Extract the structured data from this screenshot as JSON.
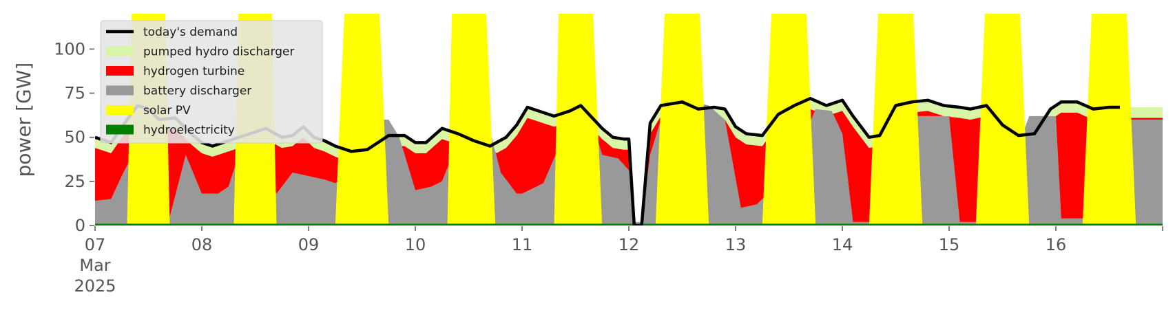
{
  "chart_data": {
    "type": "area",
    "ylabel": "power [GW]",
    "ylim": [
      0,
      120
    ],
    "yticks": [
      0,
      25,
      50,
      75,
      100
    ],
    "xlim": [
      0,
      10
    ],
    "x_tick_labels": [
      "07",
      "08",
      "09",
      "10",
      "11",
      "12",
      "13",
      "14",
      "15",
      "16"
    ],
    "x_tick_sublabels": [
      "Mar",
      "2025"
    ],
    "legend_position": "upper-left",
    "grid": false,
    "background": "#ffffff",
    "stack_order": [
      "hydroelectricity",
      "battery discharger",
      "hydrogen turbine",
      "pumped hydro discharger",
      "solar PV"
    ],
    "series": [
      {
        "name": "today's demand",
        "kind": "line",
        "color": "#000000",
        "points": [
          [
            0,
            50
          ],
          [
            0.15,
            47
          ],
          [
            0.3,
            60
          ],
          [
            0.4,
            68
          ],
          [
            0.5,
            66
          ],
          [
            0.6,
            60
          ],
          [
            0.75,
            61
          ],
          [
            0.9,
            52
          ],
          [
            1.0,
            47
          ],
          [
            1.1,
            45
          ],
          [
            1.25,
            48
          ],
          [
            1.4,
            51
          ],
          [
            1.6,
            55
          ],
          [
            1.75,
            50
          ],
          [
            1.85,
            51
          ],
          [
            1.95,
            56
          ],
          [
            2.05,
            50
          ],
          [
            2.15,
            48
          ],
          [
            2.25,
            45
          ],
          [
            2.4,
            42
          ],
          [
            2.55,
            43
          ],
          [
            2.65,
            47
          ],
          [
            2.75,
            51
          ],
          [
            2.9,
            51
          ],
          [
            3.0,
            47
          ],
          [
            3.1,
            47
          ],
          [
            3.25,
            55
          ],
          [
            3.4,
            52
          ],
          [
            3.55,
            48
          ],
          [
            3.7,
            45
          ],
          [
            3.85,
            50
          ],
          [
            3.95,
            57
          ],
          [
            4.05,
            67
          ],
          [
            4.2,
            64
          ],
          [
            4.3,
            62
          ],
          [
            4.45,
            65
          ],
          [
            4.55,
            68
          ],
          [
            4.75,
            55
          ],
          [
            4.85,
            50
          ],
          [
            4.95,
            49
          ],
          [
            5.0,
            49
          ],
          [
            5.05,
            0
          ],
          [
            5.12,
            0
          ],
          [
            5.2,
            58
          ],
          [
            5.3,
            68
          ],
          [
            5.5,
            70
          ],
          [
            5.65,
            66
          ],
          [
            5.8,
            67
          ],
          [
            5.9,
            66
          ],
          [
            6.0,
            56
          ],
          [
            6.1,
            52
          ],
          [
            6.25,
            51
          ],
          [
            6.4,
            63
          ],
          [
            6.55,
            68
          ],
          [
            6.7,
            72
          ],
          [
            6.85,
            68
          ],
          [
            7.0,
            71
          ],
          [
            7.1,
            62
          ],
          [
            7.25,
            50
          ],
          [
            7.35,
            51
          ],
          [
            7.5,
            68
          ],
          [
            7.65,
            70
          ],
          [
            7.8,
            71
          ],
          [
            7.95,
            68
          ],
          [
            8.1,
            67
          ],
          [
            8.2,
            66
          ],
          [
            8.35,
            68
          ],
          [
            8.5,
            57
          ],
          [
            8.65,
            51
          ],
          [
            8.8,
            52
          ],
          [
            8.95,
            66
          ],
          [
            9.05,
            70
          ],
          [
            9.2,
            70
          ],
          [
            9.35,
            66
          ],
          [
            9.5,
            67
          ],
          [
            9.6,
            67
          ]
        ]
      },
      {
        "name": "pumped hydro discharger",
        "kind": "area",
        "color": "#d9f5a8"
      },
      {
        "name": "hydrogen turbine",
        "kind": "area",
        "color": "#ff0000"
      },
      {
        "name": "battery discharger",
        "kind": "area",
        "color": "#999999"
      },
      {
        "name": "solar PV",
        "kind": "area",
        "color": "#ffff00"
      },
      {
        "name": "hydroelectricity",
        "kind": "area",
        "color": "#008000"
      }
    ],
    "hydro_top": [
      [
        0,
        1
      ],
      [
        1.8,
        1
      ],
      [
        2.0,
        1
      ],
      [
        5.5,
        1
      ],
      [
        7.5,
        1
      ],
      [
        9.9,
        1
      ]
    ],
    "battery_top": [
      [
        0,
        14
      ],
      [
        0.15,
        15
      ],
      [
        0.25,
        28
      ],
      [
        0.35,
        40
      ],
      [
        0.55,
        20
      ],
      [
        0.7,
        5
      ],
      [
        0.85,
        40
      ],
      [
        1.0,
        18
      ],
      [
        1.15,
        18
      ],
      [
        1.25,
        22
      ],
      [
        1.4,
        50
      ],
      [
        1.55,
        40
      ],
      [
        1.7,
        18
      ],
      [
        1.85,
        30
      ],
      [
        2.0,
        28
      ],
      [
        2.15,
        26
      ],
      [
        2.25,
        24
      ],
      [
        2.35,
        28
      ],
      [
        2.6,
        60
      ],
      [
        2.75,
        60
      ],
      [
        2.85,
        50
      ],
      [
        3.0,
        20
      ],
      [
        3.15,
        22
      ],
      [
        3.25,
        25
      ],
      [
        3.45,
        55
      ],
      [
        3.65,
        65
      ],
      [
        3.8,
        30
      ],
      [
        3.95,
        18
      ],
      [
        4.0,
        18
      ],
      [
        4.2,
        24
      ],
      [
        4.35,
        45
      ],
      [
        4.6,
        70
      ],
      [
        4.75,
        40
      ],
      [
        4.9,
        38
      ],
      [
        5.02,
        30
      ],
      [
        5.05,
        2
      ],
      [
        5.12,
        2
      ],
      [
        5.2,
        40
      ],
      [
        5.35,
        70
      ],
      [
        5.6,
        70
      ],
      [
        5.75,
        68
      ],
      [
        5.9,
        60
      ],
      [
        6.05,
        10
      ],
      [
        6.2,
        12
      ],
      [
        6.3,
        18
      ],
      [
        6.5,
        30
      ],
      [
        6.75,
        66
      ],
      [
        6.9,
        65
      ],
      [
        7.0,
        52
      ],
      [
        7.1,
        2
      ],
      [
        7.25,
        2
      ],
      [
        7.35,
        2
      ],
      [
        7.45,
        20
      ],
      [
        7.7,
        62
      ],
      [
        7.9,
        62
      ],
      [
        8.0,
        62
      ],
      [
        8.1,
        2
      ],
      [
        8.25,
        2
      ],
      [
        8.35,
        2
      ],
      [
        8.5,
        20
      ],
      [
        8.75,
        62
      ],
      [
        9.0,
        62
      ],
      [
        9.05,
        4
      ],
      [
        9.25,
        4
      ],
      [
        9.35,
        4
      ],
      [
        9.45,
        20
      ],
      [
        9.7,
        60
      ],
      [
        9.9,
        60
      ]
    ],
    "demand_pairs_note": "",
    "solar_top": [
      [
        0,
        0
      ],
      [
        0.3,
        0
      ],
      [
        0.35,
        140
      ],
      [
        0.65,
        140
      ],
      [
        0.7,
        0
      ],
      [
        1.3,
        0
      ],
      [
        1.35,
        140
      ],
      [
        1.65,
        140
      ],
      [
        1.7,
        0
      ],
      [
        2.25,
        0
      ],
      [
        2.35,
        140
      ],
      [
        2.65,
        140
      ],
      [
        2.75,
        0
      ],
      [
        3.3,
        0
      ],
      [
        3.35,
        140
      ],
      [
        3.65,
        140
      ],
      [
        3.75,
        0
      ],
      [
        4.3,
        0
      ],
      [
        4.35,
        140
      ],
      [
        4.65,
        140
      ],
      [
        4.75,
        0
      ],
      [
        5.25,
        0
      ],
      [
        5.35,
        140
      ],
      [
        5.65,
        140
      ],
      [
        5.75,
        0
      ],
      [
        6.25,
        0
      ],
      [
        6.35,
        140
      ],
      [
        6.65,
        140
      ],
      [
        6.75,
        0
      ],
      [
        7.25,
        0
      ],
      [
        7.35,
        140
      ],
      [
        7.65,
        140
      ],
      [
        7.75,
        0
      ],
      [
        8.25,
        0
      ],
      [
        8.35,
        140
      ],
      [
        8.65,
        140
      ],
      [
        8.75,
        0
      ],
      [
        9.25,
        0
      ],
      [
        9.35,
        140
      ],
      [
        9.65,
        140
      ],
      [
        9.75,
        0
      ]
    ]
  }
}
